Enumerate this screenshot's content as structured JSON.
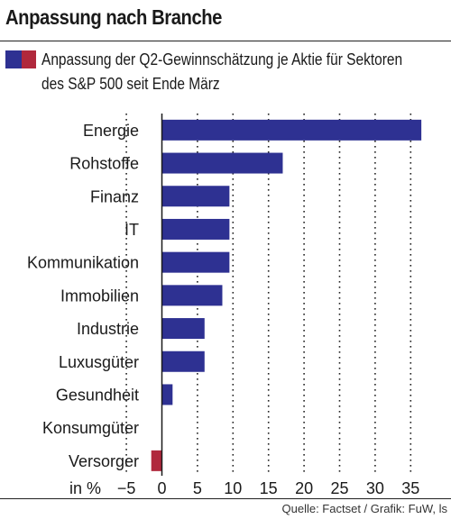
{
  "header": {
    "title": "Anpassung nach Branche",
    "subtitle": "Anpassung der Q2-Gewinnschätzung je Aktie für Sektoren\ndes S&P 500 seit Ende März"
  },
  "footer": {
    "source": "Quelle: Factset / Grafik: FuW, ls"
  },
  "colors": {
    "positive": "#2e3192",
    "negative": "#b0283c"
  },
  "chart_data": {
    "type": "bar",
    "orientation": "horizontal",
    "categories": [
      "Energie",
      "Rohstoffe",
      "Finanz",
      "IT",
      "Kommunikation",
      "Immobilien",
      "Industrie",
      "Luxusgüter",
      "Gesundheit",
      "Konsumgüter",
      "Versorger"
    ],
    "values": [
      36.5,
      17,
      9.5,
      9.5,
      9.5,
      8.5,
      6,
      6,
      1.5,
      0,
      -1.5
    ],
    "unit_label": "in %",
    "xlim": [
      -5,
      37
    ],
    "xticks": [
      -5,
      0,
      5,
      10,
      15,
      20,
      25,
      30,
      35
    ],
    "xtick_labels": [
      "−5",
      "0",
      "5",
      "10",
      "15",
      "20",
      "25",
      "30",
      "35"
    ],
    "grid": "vertical dotted",
    "legend": "top-left"
  }
}
